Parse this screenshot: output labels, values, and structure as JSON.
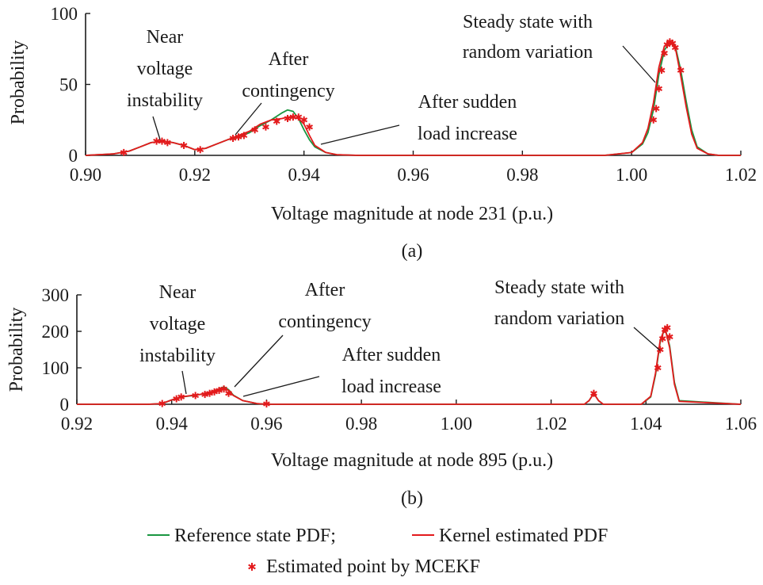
{
  "chart_data": [
    {
      "type": "line",
      "panel_label": "(a)",
      "xlabel": "Voltage magnitude at node 231 (p.u.)",
      "ylabel": "Probability",
      "xlim": [
        0.9,
        1.02
      ],
      "ylim": [
        0,
        100
      ],
      "xticks": [
        "0.90",
        "0.92",
        "0.94",
        "0.96",
        "0.98",
        "1.00",
        "1.02"
      ],
      "yticks": [
        "0",
        "50",
        "100"
      ],
      "series": [
        {
          "name": "Reference state PDF",
          "color": "#1a9641",
          "x": [
            0.9,
            0.905,
            0.908,
            0.91,
            0.912,
            0.914,
            0.916,
            0.918,
            0.92,
            0.922,
            0.924,
            0.926,
            0.928,
            0.93,
            0.932,
            0.934,
            0.936,
            0.937,
            0.938,
            0.939,
            0.94,
            0.941,
            0.942,
            0.944,
            0.946,
            0.95,
            0.96,
            0.98,
            0.995,
            1.0,
            1.002,
            1.003,
            1.004,
            1.005,
            1.006,
            1.007,
            1.008,
            1.009,
            1.01,
            1.011,
            1.012,
            1.014,
            1.016,
            1.02
          ],
          "y": [
            0,
            1,
            3,
            6,
            9,
            10,
            9,
            7,
            4,
            5,
            8,
            11,
            13,
            16,
            21,
            25,
            30,
            32,
            31,
            26,
            18,
            11,
            6,
            2,
            0.5,
            0,
            0,
            0,
            0,
            2,
            8,
            16,
            32,
            57,
            74,
            80,
            77,
            60,
            38,
            18,
            6,
            1,
            0,
            0
          ]
        },
        {
          "name": "Kernel estimated PDF",
          "color": "#e31a1c",
          "x": [
            0.9,
            0.905,
            0.908,
            0.91,
            0.912,
            0.914,
            0.916,
            0.918,
            0.92,
            0.922,
            0.924,
            0.926,
            0.928,
            0.93,
            0.932,
            0.934,
            0.936,
            0.937,
            0.938,
            0.939,
            0.94,
            0.941,
            0.942,
            0.944,
            0.946,
            0.95,
            0.96,
            0.98,
            0.995,
            1.0,
            1.002,
            1.003,
            1.004,
            1.005,
            1.006,
            1.007,
            1.008,
            1.009,
            1.01,
            1.011,
            1.012,
            1.014,
            1.016,
            1.02
          ],
          "y": [
            0,
            1,
            3,
            6,
            9,
            10,
            9,
            7,
            4,
            5,
            8,
            11,
            14,
            17,
            22,
            25,
            26,
            27,
            27,
            26,
            22,
            14,
            7,
            2,
            0.5,
            0,
            0,
            0,
            0,
            2,
            9,
            19,
            37,
            62,
            77,
            80,
            76,
            56,
            34,
            15,
            5,
            1,
            0,
            0
          ]
        },
        {
          "name": "Estimated point by MCEKF",
          "color": "#e31a1c",
          "marker": "asterisk",
          "x": [
            0.907,
            0.913,
            0.914,
            0.915,
            0.918,
            0.921,
            0.927,
            0.928,
            0.929,
            0.931,
            0.933,
            0.935,
            0.937,
            0.938,
            0.939,
            0.94,
            0.941,
            1.004,
            1.0045,
            1.005,
            1.0055,
            1.006,
            1.0065,
            1.007,
            1.0075,
            1.008,
            1.009
          ],
          "y": [
            2,
            10,
            10,
            9,
            7,
            4,
            12,
            13,
            14,
            18,
            20,
            24,
            26,
            27,
            27,
            25,
            20,
            25,
            33,
            47,
            60,
            72,
            78,
            80,
            79,
            76,
            60
          ]
        }
      ],
      "annotations": [
        {
          "lines": [
            "Near",
            "voltage",
            "instability"
          ]
        },
        {
          "lines": [
            "After",
            "contingency"
          ]
        },
        {
          "lines": [
            "After sudden",
            "load increase"
          ]
        },
        {
          "lines": [
            "Steady state with",
            "random variation"
          ]
        }
      ]
    },
    {
      "type": "line",
      "panel_label": "(b)",
      "xlabel": "Voltage magnitude at node 895 (p.u.)",
      "ylabel": "Probability",
      "xlim": [
        0.92,
        1.06
      ],
      "ylim": [
        0,
        300
      ],
      "xticks": [
        "0.92",
        "0.94",
        "0.96",
        "0.98",
        "1.00",
        "1.02",
        "1.04",
        "1.06"
      ],
      "yticks": [
        "0",
        "100",
        "200",
        "300"
      ],
      "series": [
        {
          "name": "Reference state PDF",
          "color": "#1a9641",
          "x": [
            0.92,
            0.935,
            0.938,
            0.94,
            0.942,
            0.944,
            0.946,
            0.948,
            0.95,
            0.951,
            0.952,
            0.953,
            0.955,
            0.958,
            0.96,
            1.0,
            1.027,
            1.028,
            1.029,
            1.03,
            1.031,
            1.039,
            1.041,
            1.042,
            1.043,
            1.044,
            1.045,
            1.046,
            1.047,
            1.06
          ],
          "y": [
            0,
            0,
            2,
            12,
            20,
            23,
            27,
            32,
            42,
            48,
            40,
            25,
            10,
            2,
            0,
            0,
            0,
            10,
            30,
            10,
            0,
            0,
            20,
            80,
            170,
            210,
            160,
            60,
            10,
            0
          ]
        },
        {
          "name": "Kernel estimated PDF",
          "color": "#e31a1c",
          "x": [
            0.92,
            0.935,
            0.938,
            0.94,
            0.942,
            0.944,
            0.946,
            0.948,
            0.95,
            0.951,
            0.952,
            0.953,
            0.955,
            0.958,
            0.96,
            1.0,
            1.027,
            1.028,
            1.029,
            1.03,
            1.031,
            1.039,
            1.041,
            1.042,
            1.043,
            1.044,
            1.045,
            1.046,
            1.047,
            1.06
          ],
          "y": [
            0,
            0,
            2,
            12,
            20,
            24,
            27,
            33,
            42,
            45,
            38,
            24,
            10,
            2,
            0,
            0,
            0,
            10,
            30,
            10,
            0,
            0,
            22,
            85,
            175,
            210,
            155,
            55,
            8,
            0
          ]
        },
        {
          "name": "Estimated point by MCEKF",
          "color": "#e31a1c",
          "marker": "asterisk",
          "x": [
            0.938,
            0.941,
            0.942,
            0.945,
            0.947,
            0.948,
            0.949,
            0.95,
            0.951,
            0.952,
            0.96,
            1.029,
            1.0425,
            1.043,
            1.0435,
            1.044,
            1.0445,
            1.045
          ],
          "y": [
            2,
            15,
            20,
            24,
            27,
            30,
            34,
            38,
            42,
            30,
            1,
            30,
            100,
            150,
            180,
            205,
            210,
            185
          ]
        }
      ],
      "annotations": [
        {
          "lines": [
            "Near",
            "voltage",
            "instability"
          ]
        },
        {
          "lines": [
            "After",
            "contingency"
          ]
        },
        {
          "lines": [
            "After sudden",
            "load increase"
          ]
        },
        {
          "lines": [
            "Steady state with",
            "random variation"
          ]
        }
      ]
    }
  ],
  "legend": {
    "items": [
      {
        "label": "Reference state PDF;",
        "color": "#1a9641",
        "kind": "line"
      },
      {
        "label": "Kernel estimated PDF",
        "color": "#e31a1c",
        "kind": "line"
      },
      {
        "label": "Estimated point by MCEKF",
        "color": "#e31a1c",
        "kind": "asterisk"
      }
    ]
  }
}
